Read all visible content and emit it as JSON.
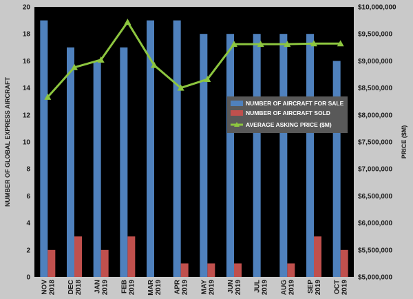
{
  "chart_data": {
    "type": "bar",
    "categories": [
      [
        "NOV",
        "2018"
      ],
      [
        "DEC",
        "2018"
      ],
      [
        "JAN",
        "2019"
      ],
      [
        "FEB",
        "2019"
      ],
      [
        "MAR",
        "2019"
      ],
      [
        "APR",
        "2019"
      ],
      [
        "MAY",
        "2019"
      ],
      [
        "JUN",
        "2019"
      ],
      [
        "JUL",
        "2019"
      ],
      [
        "AUG",
        "2019"
      ],
      [
        "SEP",
        "2019"
      ],
      [
        "OCT",
        "2019"
      ]
    ],
    "series": [
      {
        "name": "NUMBER OF AIRCRAFT FOR SALE",
        "kind": "bar",
        "axis": "left",
        "color": "#4f81bd",
        "values": [
          19,
          17,
          16,
          17,
          19,
          19,
          18,
          18,
          18,
          18,
          18,
          16
        ]
      },
      {
        "name": "NUMBER OF AIRCRAFT SOLD",
        "kind": "bar",
        "axis": "left",
        "color": "#c0504d",
        "values": [
          2,
          3,
          2,
          3,
          0,
          1,
          1,
          1,
          0,
          1,
          3,
          2
        ]
      },
      {
        "name": "AVERAGE ASKING PRICE ($M)",
        "kind": "line",
        "axis": "right",
        "color": "#8dc63f",
        "values": [
          8330000,
          8880000,
          9020000,
          9720000,
          8920000,
          8500000,
          8660000,
          9310000,
          9310000,
          9310000,
          9320000,
          9320000
        ]
      }
    ],
    "ylabel": "NUMBER OF GLOBAL EXPRESS AIRCRAFT",
    "y2label": "PRICE ($M)",
    "ylim": [
      0,
      20
    ],
    "yticks": [
      "0",
      "2",
      "4",
      "6",
      "8",
      "10",
      "12",
      "14",
      "16",
      "18",
      "20"
    ],
    "y2lim": [
      5000000,
      10000000
    ],
    "y2ticks": [
      "$5,000,000",
      "$5,500,000",
      "$6,000,000",
      "$6,500,000",
      "$7,000,000",
      "$7,500,000",
      "$8,000,000",
      "$8,500,000",
      "$9,000,000",
      "$9,500,000",
      "$10,000,000"
    ],
    "legend_position": "right-middle",
    "colors": {
      "plot_bg": "#000000",
      "page_bg": "#c9c9c9",
      "legend_bg": "#595959"
    }
  }
}
